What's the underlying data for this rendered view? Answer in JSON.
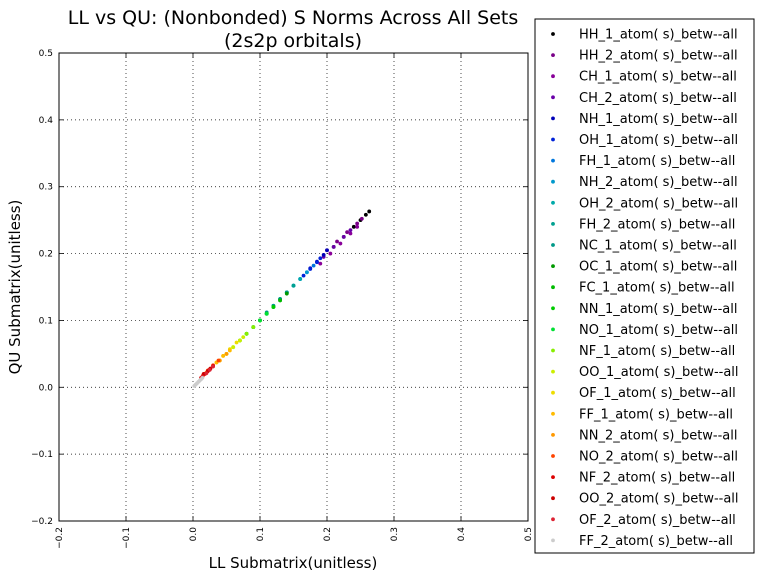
{
  "chart_data": {
    "type": "scatter",
    "title": [
      "LL vs QU: (Nonbonded) S Norms Across All Sets",
      "(2s2p orbitals)"
    ],
    "xlabel": "LL Submatrix(unitless)",
    "ylabel": "QU Submatrix(unitless)",
    "xlim": [
      -0.2,
      0.5
    ],
    "ylim": [
      -0.2,
      0.5
    ],
    "xticks": [
      "−0.2",
      "−0.1",
      "0.0",
      "0.1",
      "0.2",
      "0.3",
      "0.4",
      "0.5"
    ],
    "yticks": [
      "−0.2",
      "−0.1",
      "0.0",
      "0.1",
      "0.2",
      "0.3",
      "0.4",
      "0.5"
    ],
    "grid": true,
    "legend_position": "right-outside",
    "series": [
      {
        "name": "HH_1_atom( s)_betw--all",
        "color": "#000000",
        "x": [
          0.21,
          0.225,
          0.24,
          0.25,
          0.258,
          0.263
        ],
        "y": [
          0.21,
          0.225,
          0.24,
          0.25,
          0.258,
          0.263
        ]
      },
      {
        "name": "HH_2_atom( s)_betw--all",
        "color": "#7a0088",
        "x": [
          0.2,
          0.215,
          0.23,
          0.245,
          0.252
        ],
        "y": [
          0.205,
          0.218,
          0.232,
          0.245,
          0.252
        ]
      },
      {
        "name": "CH_1_atom( s)_betw--all",
        "color": "#880099",
        "x": [
          0.19,
          0.205,
          0.22,
          0.235,
          0.245
        ],
        "y": [
          0.185,
          0.2,
          0.215,
          0.23,
          0.24
        ]
      },
      {
        "name": "CH_2_atom( s)_betw--all",
        "color": "#6a00a8",
        "x": [
          0.195,
          0.21,
          0.225,
          0.235
        ],
        "y": [
          0.195,
          0.21,
          0.225,
          0.235
        ]
      },
      {
        "name": "NH_1_atom( s)_betw--all",
        "color": "#0000b8",
        "x": [
          0.175,
          0.185,
          0.195,
          0.2
        ],
        "y": [
          0.178,
          0.188,
          0.198,
          0.205
        ]
      },
      {
        "name": "OH_1_atom( s)_betw--all",
        "color": "#0022d8",
        "x": [
          0.165,
          0.175,
          0.185,
          0.19
        ],
        "y": [
          0.167,
          0.177,
          0.187,
          0.193
        ]
      },
      {
        "name": "FH_1_atom( s)_betw--all",
        "color": "#0077dd",
        "x": [
          0.15,
          0.16,
          0.17,
          0.18
        ],
        "y": [
          0.152,
          0.162,
          0.172,
          0.182
        ]
      },
      {
        "name": "NH_2_atom( s)_betw--all",
        "color": "#0099cc",
        "x": [
          0.14,
          0.15,
          0.16,
          0.17
        ],
        "y": [
          0.142,
          0.152,
          0.162,
          0.172
        ]
      },
      {
        "name": "OH_2_atom( s)_betw--all",
        "color": "#00aaaa",
        "x": [
          0.13,
          0.14,
          0.15,
          0.16
        ],
        "y": [
          0.132,
          0.142,
          0.152,
          0.162
        ]
      },
      {
        "name": "FH_2_atom( s)_betw--all",
        "color": "#00a090",
        "x": [
          0.12,
          0.13,
          0.14,
          0.15
        ],
        "y": [
          0.122,
          0.132,
          0.142,
          0.152
        ]
      },
      {
        "name": "NC_1_atom( s)_betw--all",
        "color": "#009988",
        "x": [
          0.11,
          0.12,
          0.13,
          0.14
        ],
        "y": [
          0.112,
          0.122,
          0.132,
          0.142
        ]
      },
      {
        "name": "OC_1_atom( s)_betw--all",
        "color": "#009900",
        "x": [
          0.1,
          0.11,
          0.12,
          0.13,
          0.14
        ],
        "y": [
          0.1,
          0.11,
          0.12,
          0.13,
          0.14
        ]
      },
      {
        "name": "FC_1_atom( s)_betw--all",
        "color": "#00bb00",
        "x": [
          0.09,
          0.1,
          0.11,
          0.12,
          0.13
        ],
        "y": [
          0.09,
          0.1,
          0.11,
          0.12,
          0.13
        ]
      },
      {
        "name": "NN_1_atom( s)_betw--all",
        "color": "#00cc00",
        "x": [
          0.08,
          0.09,
          0.1,
          0.11,
          0.12
        ],
        "y": [
          0.08,
          0.09,
          0.1,
          0.11,
          0.12
        ]
      },
      {
        "name": "NO_1_atom( s)_betw--all",
        "color": "#00e033",
        "x": [
          0.07,
          0.08,
          0.09,
          0.1,
          0.11
        ],
        "y": [
          0.07,
          0.08,
          0.09,
          0.1,
          0.11
        ]
      },
      {
        "name": "NF_1_atom( s)_betw--all",
        "color": "#88ee00",
        "x": [
          0.05,
          0.06,
          0.07,
          0.08,
          0.09
        ],
        "y": [
          0.05,
          0.06,
          0.07,
          0.08,
          0.09
        ]
      },
      {
        "name": "OO_1_atom( s)_betw--all",
        "color": "#ccee00",
        "x": [
          0.04,
          0.05,
          0.06,
          0.07,
          0.075
        ],
        "y": [
          0.04,
          0.05,
          0.06,
          0.07,
          0.075
        ]
      },
      {
        "name": "OF_1_atom( s)_betw--all",
        "color": "#eedd00",
        "x": [
          0.035,
          0.045,
          0.055,
          0.065
        ],
        "y": [
          0.037,
          0.047,
          0.057,
          0.067
        ]
      },
      {
        "name": "FF_1_atom( s)_betw--all",
        "color": "#ffbb00",
        "x": [
          0.025,
          0.035,
          0.045,
          0.055
        ],
        "y": [
          0.027,
          0.037,
          0.047,
          0.055
        ]
      },
      {
        "name": "NN_2_atom( s)_betw--all",
        "color": "#ff9900",
        "x": [
          0.02,
          0.03,
          0.04,
          0.05
        ],
        "y": [
          0.022,
          0.032,
          0.04,
          0.05
        ]
      },
      {
        "name": "NO_2_atom( s)_betw--all",
        "color": "#ff4400",
        "x": [
          0.015,
          0.022,
          0.03,
          0.038
        ],
        "y": [
          0.018,
          0.025,
          0.033,
          0.04
        ]
      },
      {
        "name": "NF_2_atom( s)_betw--all",
        "color": "#dd0000",
        "x": [
          0.012,
          0.018,
          0.024,
          0.03
        ],
        "y": [
          0.014,
          0.02,
          0.026,
          0.032
        ]
      },
      {
        "name": "OO_2_atom( s)_betw--all",
        "color": "#cc0000",
        "x": [
          0.016,
          0.022,
          0.026
        ],
        "y": [
          0.02,
          0.024,
          0.028
        ]
      },
      {
        "name": "OF_2_atom( s)_betw--all",
        "color": "#dd2233",
        "x": [
          0.014,
          0.02,
          0.025,
          0.03
        ],
        "y": [
          0.016,
          0.021,
          0.026,
          0.031
        ]
      },
      {
        "name": "FF_2_atom( s)_betw--all",
        "color": "#cccccc",
        "x": [
          0.002,
          0.004,
          0.006,
          0.008,
          0.01,
          0.012,
          0.014
        ],
        "y": [
          0.002,
          0.004,
          0.006,
          0.008,
          0.01,
          0.012,
          0.014
        ]
      }
    ]
  }
}
